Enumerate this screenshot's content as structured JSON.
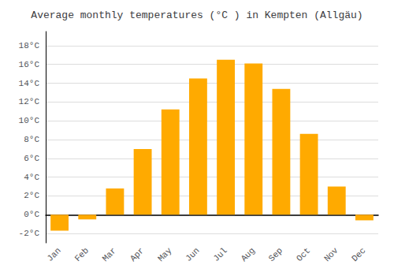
{
  "chart_data": {
    "type": "bar",
    "title": "Average monthly temperatures (°C ) in Kempten (Allgäu)",
    "categories": [
      "Jan",
      "Feb",
      "Mar",
      "Apr",
      "May",
      "Jun",
      "Jul",
      "Aug",
      "Sep",
      "Oct",
      "Nov",
      "Dec"
    ],
    "values": [
      -1.7,
      -0.5,
      2.8,
      7.0,
      11.2,
      14.5,
      16.5,
      16.1,
      13.4,
      8.6,
      3.0,
      -0.6
    ],
    "color": "#FFAA00",
    "ylim": [
      -3.0,
      19.5
    ],
    "yticks": [
      {
        "value": -2,
        "label": "-2°C"
      },
      {
        "value": 0,
        "label": "0°C"
      },
      {
        "value": 2,
        "label": "2°C"
      },
      {
        "value": 4,
        "label": "4°C"
      },
      {
        "value": 6,
        "label": "6°C"
      },
      {
        "value": 8,
        "label": "8°C"
      },
      {
        "value": 10,
        "label": "10°C"
      },
      {
        "value": 12,
        "label": "12°C"
      },
      {
        "value": 14,
        "label": "14°C"
      },
      {
        "value": 16,
        "label": "16°C"
      },
      {
        "value": 18,
        "label": "18°C"
      }
    ],
    "grid": true
  }
}
